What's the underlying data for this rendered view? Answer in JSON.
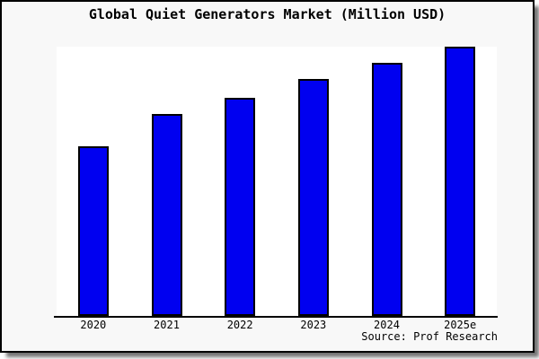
{
  "chart_data": {
    "type": "bar",
    "title": "Global Quiet Generators Market (Million USD)",
    "categories": [
      "2020",
      "2021",
      "2022",
      "2023",
      "2024",
      "2025e"
    ],
    "values": [
      63,
      75,
      81,
      88,
      94,
      100
    ],
    "units": "relative index, tallest bar (2025e) = 100; y-axis has no tick labels",
    "ylim": [
      0,
      100
    ],
    "xlabel": "",
    "ylabel": "",
    "grid": false,
    "legend": false,
    "source": "Source: Prof Research",
    "colors": {
      "bar_fill": "#0000f0",
      "bar_border": "#000000",
      "plot_background": "#ffffff",
      "card_background": "#f8f8f8",
      "axis": "#000000",
      "text": "#000000"
    }
  }
}
